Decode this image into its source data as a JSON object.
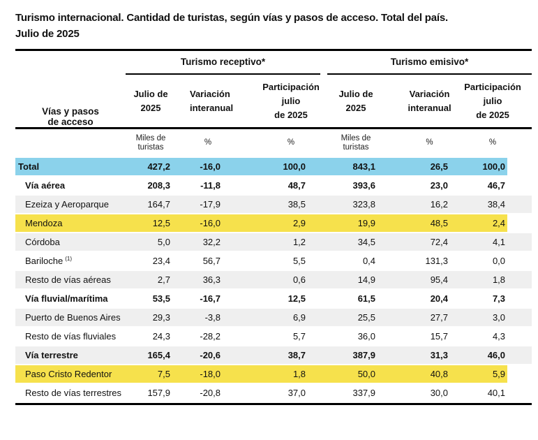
{
  "title": {
    "line1": "Turismo internacional. Cantidad de turistas, según vías y pasos de acceso. Total del país.",
    "line2": "Julio de 2025"
  },
  "colors": {
    "highlight_blue": "#8BD2EB",
    "highlight_yellow": "#F6E14C",
    "stripe_gray": "#EFEFEF"
  },
  "table": {
    "corner_header": "Vías y pasos\nde acceso",
    "groups": [
      {
        "label": "Turismo receptivo*"
      },
      {
        "label": "Turismo emisivo*"
      }
    ],
    "columns": [
      {
        "label": "Julio de\n2025"
      },
      {
        "label": "Variación\ninteranual"
      },
      {
        "label": "Participación\njulio\nde 2025"
      },
      {
        "label": "Julio de\n2025"
      },
      {
        "label": "Variación\ninteranual"
      },
      {
        "label": "Participación\njulio\nde 2025"
      }
    ],
    "units": [
      "Miles de\nturistas",
      "%",
      "%",
      "Miles de\nturistas",
      "%",
      "%"
    ],
    "rows": [
      {
        "label": "Total",
        "bold": true,
        "indent": 0,
        "bg": "blue",
        "values": [
          "427,2",
          "-16,0",
          "100,0",
          "843,1",
          "26,5",
          "100,0"
        ]
      },
      {
        "label": "Vía aérea",
        "bold": true,
        "indent": 1,
        "bg": "white",
        "values": [
          "208,3",
          "-11,8",
          "48,7",
          "393,6",
          "23,0",
          "46,7"
        ]
      },
      {
        "label": "Ezeiza y Aeroparque",
        "bold": false,
        "indent": 1,
        "bg": "gray",
        "values": [
          "164,7",
          "-17,9",
          "38,5",
          "323,8",
          "16,2",
          "38,4"
        ]
      },
      {
        "label": "Mendoza",
        "bold": false,
        "indent": 1,
        "bg": "yellow",
        "values": [
          "12,5",
          "-16,0",
          "2,9",
          "19,9",
          "48,5",
          "2,4"
        ]
      },
      {
        "label": "Córdoba",
        "bold": false,
        "indent": 1,
        "bg": "gray",
        "values": [
          "5,0",
          "32,2",
          "1,2",
          "34,5",
          "72,4",
          "4,1"
        ]
      },
      {
        "label": "Bariloche",
        "footnote_marker": "(1)",
        "bold": false,
        "indent": 1,
        "bg": "white",
        "values": [
          "23,4",
          "56,7",
          "5,5",
          "0,4",
          "131,3",
          "0,0"
        ]
      },
      {
        "label": "Resto de vías aéreas",
        "bold": false,
        "indent": 1,
        "bg": "gray",
        "values": [
          "2,7",
          "36,3",
          "0,6",
          "14,9",
          "95,4",
          "1,8"
        ]
      },
      {
        "label": "Vía fluvial/marítima",
        "bold": true,
        "indent": 1,
        "bg": "white",
        "values": [
          "53,5",
          "-16,7",
          "12,5",
          "61,5",
          "20,4",
          "7,3"
        ]
      },
      {
        "label": "Puerto de Buenos Aires",
        "bold": false,
        "indent": 1,
        "bg": "gray",
        "values": [
          "29,3",
          "-3,8",
          "6,9",
          "25,5",
          "27,7",
          "3,0"
        ]
      },
      {
        "label": "Resto de vías fluviales",
        "bold": false,
        "indent": 1,
        "bg": "white",
        "values": [
          "24,3",
          "-28,2",
          "5,7",
          "36,0",
          "15,7",
          "4,3"
        ]
      },
      {
        "label": "Vía terrestre",
        "bold": true,
        "indent": 1,
        "bg": "gray",
        "values": [
          "165,4",
          "-20,6",
          "38,7",
          "387,9",
          "31,3",
          "46,0"
        ]
      },
      {
        "label": "Paso Cristo Redentor",
        "bold": false,
        "indent": 1,
        "bg": "yellow",
        "values": [
          "7,5",
          "-18,0",
          "1,8",
          "50,0",
          "40,8",
          "5,9"
        ]
      },
      {
        "label": "Resto de vías terrestres",
        "bold": false,
        "indent": 1,
        "bg": "white",
        "values": [
          "157,9",
          "-20,8",
          "37,0",
          "337,9",
          "30,0",
          "40,1"
        ]
      }
    ]
  }
}
